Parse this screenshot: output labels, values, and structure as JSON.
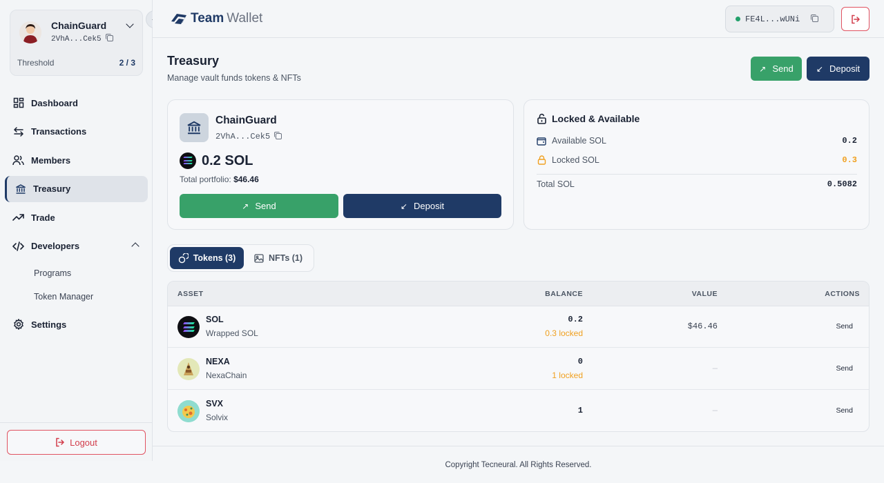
{
  "account": {
    "name": "ChainGuard",
    "address": "2VhA...Cek5",
    "threshold_label": "Threshold",
    "threshold_value": "2 / 3"
  },
  "nav": {
    "dashboard": "Dashboard",
    "transactions": "Transactions",
    "members": "Members",
    "treasury": "Treasury",
    "trade": "Trade",
    "developers": "Developers",
    "programs": "Programs",
    "token_manager": "Token Manager",
    "settings": "Settings"
  },
  "logout_label": "Logout",
  "brand": {
    "part1": "Team",
    "part2": "Wallet"
  },
  "wallet_pill": {
    "address": "FE4L...wUNi",
    "status_color": "#22a06b"
  },
  "page": {
    "title": "Treasury",
    "subtitle": "Manage vault funds tokens & NFTs",
    "send_label": "Send",
    "deposit_label": "Deposit"
  },
  "vault": {
    "name": "ChainGuard",
    "address": "2VhA...Cek5",
    "balance": "0.2 SOL",
    "portfolio_label": "Total portfolio:",
    "portfolio_value": "$46.46",
    "send_label": "Send",
    "deposit_label": "Deposit"
  },
  "locked_available": {
    "title": "Locked & Available",
    "available_label": "Available SOL",
    "available_value": "0.2",
    "locked_label": "Locked SOL",
    "locked_value": "0.3",
    "total_label": "Total SOL",
    "total_value": "0.5082"
  },
  "tabs": {
    "tokens": "Tokens (3)",
    "nfts": "NFTs (1)"
  },
  "table": {
    "headers": {
      "asset": "ASSET",
      "balance": "BALANCE",
      "value": "VALUE",
      "actions": "ACTIONS"
    },
    "rows": [
      {
        "symbol": "SOL",
        "name": "Wrapped SOL",
        "balance": "0.2",
        "locked": "0.3 locked",
        "value": "$46.46",
        "action": "Send"
      },
      {
        "symbol": "NEXA",
        "name": "NexaChain",
        "balance": "0",
        "locked": "1 locked",
        "value": "—",
        "action": "Send"
      },
      {
        "symbol": "SVX",
        "name": "Solvix",
        "balance": "1",
        "locked": "",
        "value": "—",
        "action": "Send"
      }
    ]
  },
  "footer": "Copyright Tecneural. All Rights Reserved.",
  "colors": {
    "navy": "#1f3a66",
    "green": "#38a169",
    "danger": "#d23c4a",
    "locked": "#f0a020"
  }
}
